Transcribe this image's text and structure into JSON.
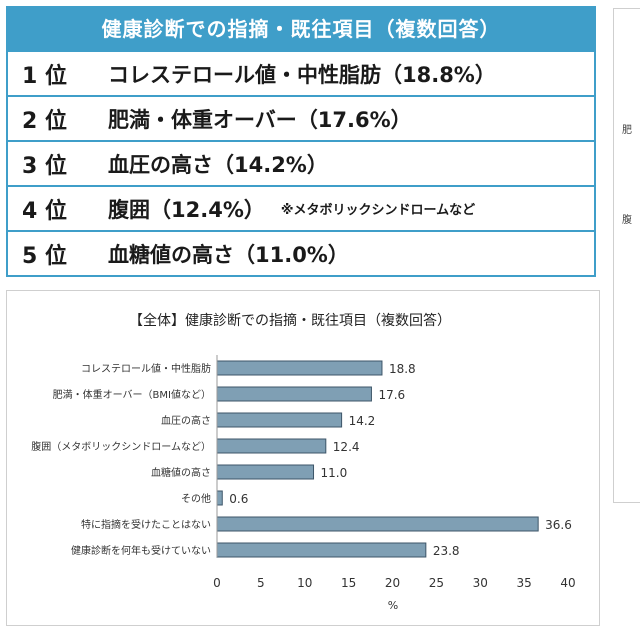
{
  "ranking": {
    "title": "健康診断での指摘・既往項目（複数回答）",
    "rows": [
      {
        "rank": "1 位",
        "text": "コレステロール値・中性脂肪（18.8%）",
        "note": ""
      },
      {
        "rank": "2 位",
        "text": "肥満・体重オーバー（17.6%）",
        "note": ""
      },
      {
        "rank": "3 位",
        "text": "血圧の高さ（14.2%）",
        "note": ""
      },
      {
        "rank": "4 位",
        "text": "腹囲（12.4%）",
        "note": "※メタボリックシンドロームなど"
      },
      {
        "rank": "5 位",
        "text": "血糖値の高さ（11.0%）",
        "note": ""
      }
    ]
  },
  "side_panel": {
    "fragments": [
      "肥",
      "腹"
    ]
  },
  "chart_data": {
    "type": "bar",
    "orientation": "horizontal",
    "title": "【全体】健康診断での指摘・既往項目（複数回答）",
    "categories": [
      "コレステロール値・中性脂肪",
      "肥満・体重オーバー（BMI値など）",
      "血圧の高さ",
      "腹囲（メタボリックシンドロームなど）",
      "血糖値の高さ",
      "その他",
      "特に指摘を受けたことはない",
      "健康診断を何年も受けていない"
    ],
    "values": [
      18.8,
      17.6,
      14.2,
      12.4,
      11.0,
      0.6,
      36.6,
      23.8
    ],
    "value_labels": [
      "18.8",
      "17.6",
      "14.2",
      "12.4",
      "11.0",
      "0.6",
      "36.6",
      "23.8"
    ],
    "xlabel": "%",
    "xlim": [
      0,
      40
    ],
    "xticks": [
      0,
      5,
      10,
      15,
      20,
      25,
      30,
      35,
      40
    ],
    "grid": false,
    "bar_color": "#7f9fb4",
    "bar_edge_color": "#3d5568"
  }
}
